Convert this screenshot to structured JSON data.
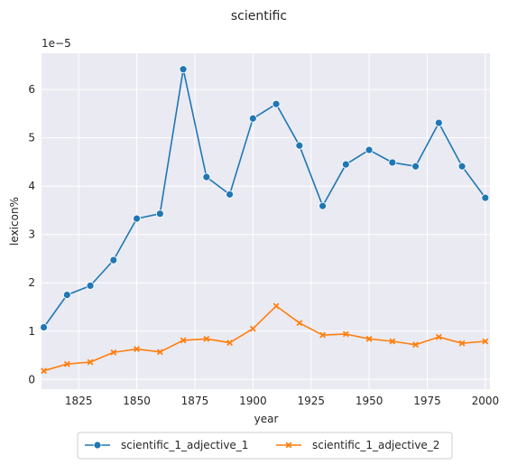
{
  "chart_data": {
    "type": "line",
    "title": "scientific",
    "xlabel": "year",
    "ylabel": "lexicon%",
    "y_offset_label": "1e−5",
    "xlim": [
      1809,
      2002
    ],
    "ylim": [
      -0.2,
      6.75
    ],
    "xticks": [
      1825,
      1850,
      1875,
      1900,
      1925,
      1950,
      1975,
      2000
    ],
    "yticks": [
      0,
      1,
      2,
      3,
      4,
      5,
      6
    ],
    "grid": true,
    "legend_position": "bottom-center",
    "x": [
      1810,
      1820,
      1830,
      1840,
      1850,
      1860,
      1870,
      1880,
      1890,
      1900,
      1910,
      1920,
      1930,
      1940,
      1950,
      1960,
      1970,
      1980,
      1990,
      2000
    ],
    "series": [
      {
        "name": "scientific_1_adjective_1",
        "color": "#1f77b4",
        "marker": "circle",
        "values": [
          1.08,
          1.75,
          1.94,
          2.47,
          3.33,
          3.43,
          6.42,
          4.19,
          3.83,
          5.4,
          5.7,
          4.84,
          3.59,
          4.45,
          4.75,
          4.49,
          4.41,
          5.31,
          4.41,
          3.76
        ]
      },
      {
        "name": "scientific_1_adjective_2",
        "color": "#ff7f0e",
        "marker": "x",
        "values": [
          0.18,
          0.32,
          0.36,
          0.56,
          0.63,
          0.57,
          0.81,
          0.84,
          0.76,
          1.05,
          1.52,
          1.17,
          0.92,
          0.94,
          0.84,
          0.79,
          0.72,
          0.88,
          0.75,
          0.79
        ]
      }
    ]
  }
}
